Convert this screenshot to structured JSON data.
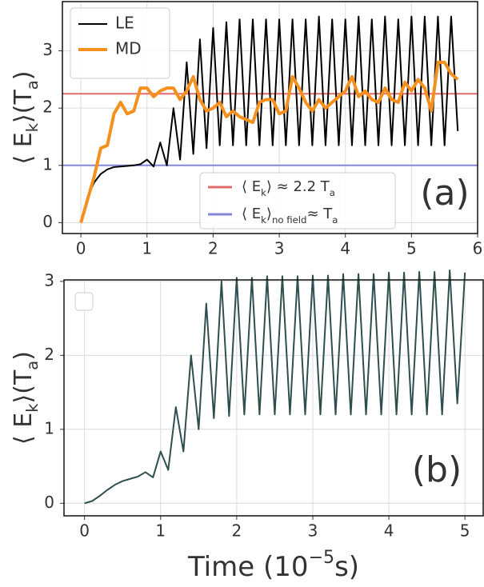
{
  "chart_data": [
    {
      "type": "line",
      "ylabel": [
        {
          "text": "⟨ E"
        },
        {
          "text": "k",
          "sub": true
        },
        {
          "text": "⟩(T"
        },
        {
          "text": "a",
          "sub": true
        },
        {
          "text": ")"
        }
      ],
      "annotation": "(a)",
      "x": [
        0,
        0.1,
        0.2,
        0.3,
        0.4,
        0.5,
        0.6,
        0.7,
        0.8,
        0.9,
        1.0,
        1.1,
        1.2,
        1.3,
        1.4,
        1.5,
        1.6,
        1.7,
        1.8,
        1.9,
        2.0,
        2.1,
        2.2,
        2.3,
        2.4,
        2.5,
        2.6,
        2.7,
        2.8,
        2.9,
        3.0,
        3.1,
        3.2,
        3.3,
        3.4,
        3.5,
        3.6,
        3.7,
        3.8,
        3.9,
        4.0,
        4.1,
        4.2,
        4.3,
        4.4,
        4.5,
        4.6,
        4.7,
        4.8,
        4.9,
        5.0,
        5.1,
        5.2,
        5.3,
        5.4,
        5.5,
        5.6,
        5.7
      ],
      "series": [
        {
          "name": "LE",
          "color": "#000000",
          "width": 2,
          "values": [
            0,
            0.45,
            0.7,
            0.85,
            0.93,
            0.97,
            0.98,
            0.99,
            1.0,
            1.02,
            1.1,
            0.98,
            1.4,
            1.0,
            2.0,
            1.1,
            2.8,
            1.2,
            3.2,
            1.3,
            3.4,
            1.35,
            3.5,
            1.35,
            3.55,
            1.35,
            3.55,
            1.35,
            3.55,
            1.35,
            3.55,
            1.35,
            3.55,
            1.35,
            3.55,
            1.35,
            3.6,
            1.35,
            3.55,
            1.35,
            3.55,
            1.35,
            3.6,
            1.35,
            3.55,
            1.35,
            3.6,
            1.35,
            3.55,
            1.35,
            3.6,
            1.35,
            3.6,
            1.35,
            3.6,
            1.35,
            3.6,
            1.6
          ]
        },
        {
          "name": "MD",
          "color": "#f5901e",
          "width": 4,
          "values": [
            0,
            0.4,
            0.8,
            1.3,
            1.35,
            1.9,
            2.1,
            1.9,
            1.95,
            2.35,
            2.35,
            2.2,
            2.3,
            2.35,
            2.35,
            2.15,
            2.3,
            2.55,
            2.15,
            1.95,
            2.0,
            2.1,
            1.85,
            1.95,
            1.85,
            1.8,
            1.75,
            2.1,
            2.15,
            2.15,
            1.9,
            1.95,
            2.55,
            2.35,
            2.1,
            1.95,
            2.15,
            2.0,
            2.1,
            2.2,
            2.3,
            2.55,
            2.2,
            2.3,
            2.15,
            2.1,
            2.35,
            2.15,
            2.1,
            2.45,
            2.3,
            2.5,
            2.35,
            1.95,
            2.8,
            2.8,
            2.6,
            2.5
          ]
        }
      ],
      "hlines": [
        {
          "value": 2.25,
          "color": "#e36a6a",
          "label": [
            {
              "text": "⟨ E"
            },
            {
              "text": "k",
              "sub": true
            },
            {
              "text": "⟩   ≈  2.2 T"
            },
            {
              "text": "a",
              "sub": true
            }
          ]
        },
        {
          "value": 1.0,
          "color": "#8585d6",
          "label": [
            {
              "text": "⟨ E"
            },
            {
              "text": "k",
              "sub": true
            },
            {
              "text": "⟩"
            },
            {
              "text": "no field",
              "sub": true
            },
            {
              "text": "≈  T"
            },
            {
              "text": "a",
              "sub": true
            }
          ]
        }
      ],
      "xlim": [
        -0.28,
        6.0
      ],
      "ylim": [
        -0.19,
        3.86
      ],
      "xticks": [
        0,
        1,
        2,
        3,
        4,
        5,
        6
      ],
      "yticks": [
        0,
        1,
        2,
        3
      ],
      "grid": true
    },
    {
      "type": "line",
      "ylabel": [
        {
          "text": "⟨ E"
        },
        {
          "text": "k",
          "sub": true
        },
        {
          "text": "⟩(T"
        },
        {
          "text": "a",
          "sub": true
        },
        {
          "text": ")"
        }
      ],
      "xlabel": [
        {
          "text": "Time (10"
        },
        {
          "text": "−5",
          "sup": true
        },
        {
          "text": "s)"
        }
      ],
      "annotation": "(b)",
      "x": [
        0,
        0.1,
        0.2,
        0.3,
        0.4,
        0.5,
        0.6,
        0.7,
        0.8,
        0.9,
        1.0,
        1.1,
        1.2,
        1.3,
        1.4,
        1.5,
        1.6,
        1.7,
        1.8,
        1.9,
        2.0,
        2.1,
        2.2,
        2.3,
        2.4,
        2.5,
        2.6,
        2.7,
        2.8,
        2.9,
        3.0,
        3.1,
        3.2,
        3.3,
        3.4,
        3.5,
        3.6,
        3.7,
        3.8,
        3.9,
        4.0,
        4.1,
        4.2,
        4.3,
        4.4,
        4.5,
        4.6,
        4.7,
        4.8,
        4.9,
        5.0
      ],
      "series": [
        {
          "color": "#2f4f4f",
          "width": 2,
          "values": [
            0,
            0.03,
            0.1,
            0.18,
            0.25,
            0.3,
            0.33,
            0.36,
            0.42,
            0.35,
            0.7,
            0.45,
            1.3,
            0.7,
            2.0,
            1.0,
            2.7,
            1.15,
            3.0,
            1.18,
            3.05,
            1.2,
            3.05,
            1.2,
            3.07,
            1.2,
            3.07,
            1.2,
            3.07,
            1.2,
            3.08,
            1.2,
            3.08,
            1.2,
            3.1,
            1.2,
            3.1,
            1.2,
            3.1,
            1.2,
            3.12,
            1.2,
            3.12,
            1.2,
            3.13,
            1.2,
            3.13,
            1.2,
            3.15,
            1.35,
            3.12
          ]
        }
      ],
      "xlim": [
        -0.27,
        5.24
      ],
      "ylim": [
        -0.17,
        3.02
      ],
      "xticks": [
        0,
        1,
        2,
        3,
        4,
        5
      ],
      "yticks": [
        0,
        1,
        2,
        3
      ],
      "grid": true
    }
  ]
}
